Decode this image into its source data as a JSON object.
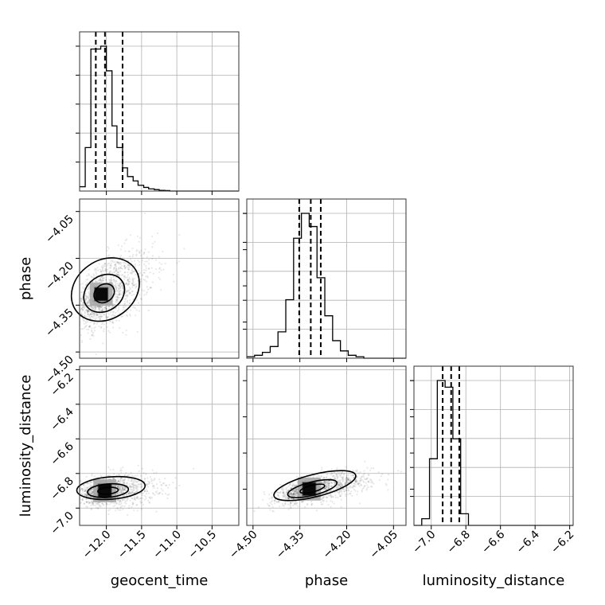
{
  "chart_data": {
    "type": "corner",
    "parameters": [
      "geocent_time",
      "phase",
      "luminosity_distance"
    ],
    "ranges": {
      "geocent_time": [
        -12.38,
        -10.12
      ],
      "phase": [
        -4.52,
        -4.01
      ],
      "luminosity_distance": [
        -7.1,
        -6.18
      ]
    },
    "ticks": {
      "geocent_time": [
        -12.0,
        -11.5,
        -11.0,
        -10.5
      ],
      "phase": [
        -4.5,
        -4.35,
        -4.2,
        -4.05
      ],
      "luminosity_distance": [
        -7.0,
        -6.8,
        -6.6,
        -6.4,
        -6.2
      ]
    },
    "tick_labels": {
      "geocent_time": [
        "−12.0",
        "−11.5",
        "−11.0",
        "−10.5"
      ],
      "phase": [
        "−4.50",
        "−4.35",
        "−4.20",
        "−4.05"
      ],
      "luminosity_distance": [
        "−7.0",
        "−6.8",
        "−6.6",
        "−6.4",
        "−6.2"
      ]
    },
    "quantiles": {
      "geocent_time": [
        -12.15,
        -12.02,
        -11.77
      ],
      "phase": [
        -4.352,
        -4.315,
        -4.283
      ],
      "luminosity_distance": [
        -6.934,
        -6.885,
        -6.838
      ]
    },
    "histograms": {
      "geocent_time": {
        "edges": [
          -12.38,
          -12.3,
          -12.22,
          -12.15,
          -12.08,
          -12.0,
          -11.92,
          -11.85,
          -11.77,
          -11.7,
          -11.62,
          -11.55,
          -11.47,
          -11.4,
          -11.32,
          -11.25,
          -11.17,
          -11.1,
          -11.02
        ],
        "counts": [
          0.03,
          0.3,
          0.98,
          0.98,
          1.0,
          0.83,
          0.45,
          0.3,
          0.16,
          0.1,
          0.07,
          0.04,
          0.025,
          0.015,
          0.01,
          0.005,
          0.003,
          0.0
        ]
      },
      "phase": {
        "edges": [
          -4.52,
          -4.495,
          -4.47,
          -4.445,
          -4.42,
          -4.395,
          -4.37,
          -4.345,
          -4.32,
          -4.295,
          -4.27,
          -4.245,
          -4.22,
          -4.195,
          -4.17,
          -4.145,
          -4.12
        ],
        "counts": [
          0.01,
          0.02,
          0.04,
          0.08,
          0.18,
          0.4,
          0.82,
          0.99,
          0.9,
          0.55,
          0.29,
          0.12,
          0.05,
          0.02,
          0.01,
          0.0
        ]
      },
      "luminosity_distance": {
        "edges": [
          -7.1,
          -7.055,
          -7.01,
          -6.965,
          -6.92,
          -6.875,
          -6.83,
          -6.785,
          -6.74,
          -6.695
        ],
        "counts": [
          0.0,
          0.04,
          0.4,
          0.87,
          0.83,
          0.52,
          0.07,
          0.0,
          0.0
        ]
      }
    },
    "scatter": [
      {
        "x": "geocent_time",
        "y": "phase",
        "x_center": -12.05,
        "y_center": -4.315,
        "x_scale": 0.19,
        "y_scale": 0.055,
        "correlation": 0.55
      },
      {
        "x": "geocent_time",
        "y": "luminosity_distance",
        "x_center": -12.0,
        "y_center": -6.9,
        "x_scale": 0.18,
        "y_scale": 0.038,
        "correlation": 0.15
      },
      {
        "x": "phase",
        "y": "luminosity_distance",
        "x_center": -4.315,
        "y_center": -6.89,
        "x_scale": 0.05,
        "y_scale": 0.038,
        "correlation": 0.6
      }
    ],
    "grid": true
  }
}
